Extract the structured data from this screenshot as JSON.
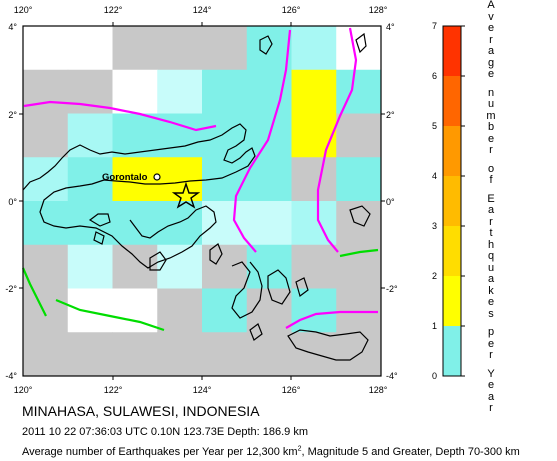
{
  "map": {
    "lon_ticks": [
      "120°",
      "122°",
      "124°",
      "126°",
      "128°"
    ],
    "lat_ticks_left": [
      "4°",
      "2°",
      "0°",
      "-2°",
      "-4°"
    ],
    "lat_ticks_right": [
      "4°",
      "2°",
      "0°",
      "-2°",
      "-4°"
    ],
    "city_label": "Gorontalo",
    "colors": {
      "no_data": "#c8c8c8",
      "cyan_1": "#80f0e8",
      "cyan_2": "#a8f8f4",
      "cyan_3": "#c8fcfa",
      "yellow": "#ffff00",
      "plate_boundary_magenta": "#ff00ff",
      "plate_boundary_green": "#00dd00",
      "coastline": "#000000"
    },
    "star_icon": "epicenter-star-icon"
  },
  "legend": {
    "ticks": [
      "0",
      "1",
      "2",
      "3",
      "4",
      "5",
      "6",
      "7"
    ],
    "title_letters": [
      "A",
      "v",
      "e",
      "r",
      "a",
      "g",
      "e",
      " ",
      "n",
      "u",
      "m",
      "b",
      "e",
      "r",
      " ",
      "o",
      "f",
      " ",
      "E",
      "a",
      "r",
      "t",
      "h",
      "q",
      "u",
      "a",
      "k",
      "e",
      "s",
      " ",
      "p",
      "e",
      "r",
      " ",
      "Y",
      "e",
      "a",
      "r"
    ],
    "colors": [
      "#80f0e8",
      "#ffff00",
      "#ffdd00",
      "#ffbb00",
      "#ff9900",
      "#ff6600",
      "#ff3300",
      "#dd0000"
    ]
  },
  "captions": {
    "region": "MINAHASA, SULAWESI, INDONESIA",
    "event": "2011 10 22 07:36:03 UTC 0.10N 123.73E Depth: 186.9 km",
    "description_part1": "Average number of Earthquakes per Year per 12,300 km",
    "description_sup": "2",
    "description_part2": ", Magnitude 5 and Greater, Depth 70-300 km"
  }
}
